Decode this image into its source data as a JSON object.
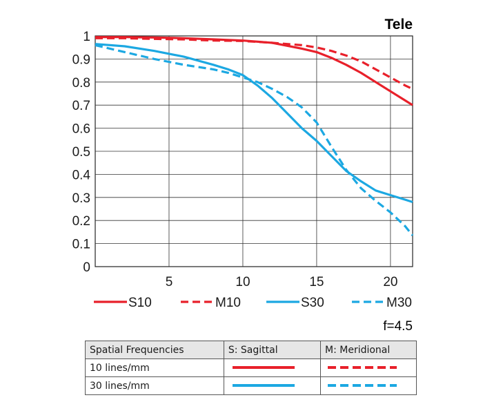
{
  "chart_data": {
    "type": "line",
    "title": "Tele",
    "aperture": "f=4.5",
    "xlim": [
      0,
      21.5
    ],
    "ylim": [
      0,
      1
    ],
    "xticks": [
      "5",
      "10",
      "15",
      "20"
    ],
    "yticks": [
      "0",
      "0.1",
      "0.2",
      "0.3",
      "0.4",
      "0.5",
      "0.6",
      "0.7",
      "0.8",
      "0.9",
      "1"
    ],
    "grid": true,
    "legend_position": "bottom",
    "series": [
      {
        "name": "S10",
        "color": "#e8202a",
        "dash": false,
        "x": [
          0,
          2,
          4,
          6,
          8,
          10,
          12,
          14,
          15,
          16,
          17,
          18,
          19,
          20,
          21,
          21.5
        ],
        "y": [
          0.995,
          0.995,
          0.993,
          0.99,
          0.985,
          0.98,
          0.97,
          0.945,
          0.93,
          0.905,
          0.875,
          0.84,
          0.8,
          0.76,
          0.72,
          0.7
        ]
      },
      {
        "name": "M10",
        "color": "#e8202a",
        "dash": true,
        "x": [
          0,
          2,
          4,
          6,
          8,
          10,
          12,
          14,
          15,
          16,
          17,
          18,
          19,
          20,
          21,
          21.5
        ],
        "y": [
          0.99,
          0.99,
          0.987,
          0.985,
          0.98,
          0.978,
          0.97,
          0.96,
          0.95,
          0.935,
          0.915,
          0.89,
          0.855,
          0.82,
          0.785,
          0.77
        ]
      },
      {
        "name": "S30",
        "color": "#1ca8e2",
        "dash": false,
        "x": [
          0,
          2,
          4,
          6,
          8,
          9,
          10,
          11,
          12,
          13,
          14,
          15,
          16,
          17,
          18,
          19,
          20,
          21,
          21.5
        ],
        "y": [
          0.965,
          0.955,
          0.935,
          0.91,
          0.875,
          0.855,
          0.83,
          0.785,
          0.73,
          0.665,
          0.6,
          0.545,
          0.48,
          0.415,
          0.37,
          0.33,
          0.31,
          0.29,
          0.28
        ]
      },
      {
        "name": "M30",
        "color": "#1ca8e2",
        "dash": true,
        "x": [
          0,
          2,
          4,
          6,
          8,
          9,
          10,
          11,
          12,
          13,
          14,
          15,
          16,
          17,
          18,
          19,
          20,
          21,
          21.5
        ],
        "y": [
          0.96,
          0.93,
          0.9,
          0.875,
          0.855,
          0.84,
          0.82,
          0.8,
          0.77,
          0.735,
          0.69,
          0.625,
          0.52,
          0.42,
          0.34,
          0.285,
          0.235,
          0.175,
          0.135
        ]
      }
    ]
  },
  "table": {
    "headers": [
      "Spatial Frequencies",
      "S: Sagittal",
      "M: Meridional"
    ],
    "rows": [
      {
        "label": "10 lines/mm",
        "color": "#e8202a"
      },
      {
        "label": "30 lines/mm",
        "color": "#1ca8e2"
      }
    ]
  }
}
